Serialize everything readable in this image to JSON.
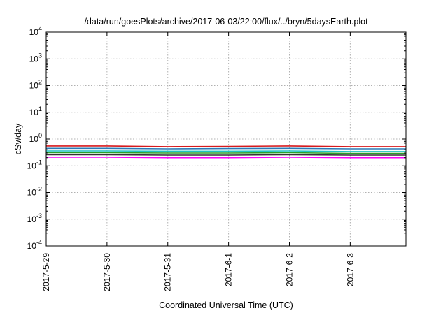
{
  "chart_data": {
    "type": "line",
    "title": "/data/run/goesPlots/archive/2017-06-03/22:00/flux/../bryn/5daysEarth.plot",
    "xlabel": "Coordinated Universal Time (UTC)",
    "ylabel": "cSv/day",
    "yscale": "log",
    "ylim": [
      0.0001,
      10000
    ],
    "y_ticks": [
      {
        "base": "10",
        "exp": "-4"
      },
      {
        "base": "10",
        "exp": "-3"
      },
      {
        "base": "10",
        "exp": "-2"
      },
      {
        "base": "10",
        "exp": "-1"
      },
      {
        "base": "10",
        "exp": "0"
      },
      {
        "base": "10",
        "exp": "1"
      },
      {
        "base": "10",
        "exp": "2"
      },
      {
        "base": "10",
        "exp": "3"
      },
      {
        "base": "10",
        "exp": "4"
      }
    ],
    "xlim": [
      "2017-05-29",
      "2017-06-03 22:00"
    ],
    "x_ticks": [
      "2017-5-29",
      "2017-5-30",
      "2017-5-31",
      "2017-6-1",
      "2017-6-2",
      "2017-6-3"
    ],
    "grid": true,
    "legend": false,
    "series": [
      {
        "color": "#d7191c",
        "x": [
          "2017-05-29",
          "2017-05-30",
          "2017-05-31",
          "2017-06-01",
          "2017-06-02",
          "2017-06-03",
          "2017-06-03 22:00"
        ],
        "values": [
          0.55,
          0.55,
          0.52,
          0.53,
          0.55,
          0.52,
          0.52
        ]
      },
      {
        "color": "#2c7bb6",
        "x": [
          "2017-05-29",
          "2017-05-30",
          "2017-05-31",
          "2017-06-01",
          "2017-06-02",
          "2017-06-03",
          "2017-06-03 22:00"
        ],
        "values": [
          0.45,
          0.45,
          0.43,
          0.44,
          0.45,
          0.43,
          0.43
        ]
      },
      {
        "color": "#1fc3c3",
        "x": [
          "2017-05-29",
          "2017-05-30",
          "2017-05-31",
          "2017-06-01",
          "2017-06-02",
          "2017-06-03",
          "2017-06-03 22:00"
        ],
        "values": [
          0.36,
          0.36,
          0.35,
          0.35,
          0.36,
          0.34,
          0.34
        ]
      },
      {
        "color": "#2ca02c",
        "x": [
          "2017-05-29",
          "2017-05-30",
          "2017-05-31",
          "2017-06-01",
          "2017-06-02",
          "2017-06-03",
          "2017-06-03 22:00"
        ],
        "values": [
          0.31,
          0.31,
          0.3,
          0.3,
          0.31,
          0.29,
          0.29
        ]
      },
      {
        "color": "#333333",
        "x": [
          "2017-05-29",
          "2017-05-30",
          "2017-05-31",
          "2017-06-01",
          "2017-06-02",
          "2017-06-03",
          "2017-06-03 22:00"
        ],
        "values": [
          0.26,
          0.26,
          0.25,
          0.25,
          0.26,
          0.25,
          0.25
        ]
      },
      {
        "color": "#ff00ff",
        "x": [
          "2017-05-29",
          "2017-05-30",
          "2017-05-31",
          "2017-06-01",
          "2017-06-02",
          "2017-06-03",
          "2017-06-03 22:00"
        ],
        "values": [
          0.21,
          0.21,
          0.2,
          0.2,
          0.21,
          0.2,
          0.2
        ]
      }
    ]
  }
}
